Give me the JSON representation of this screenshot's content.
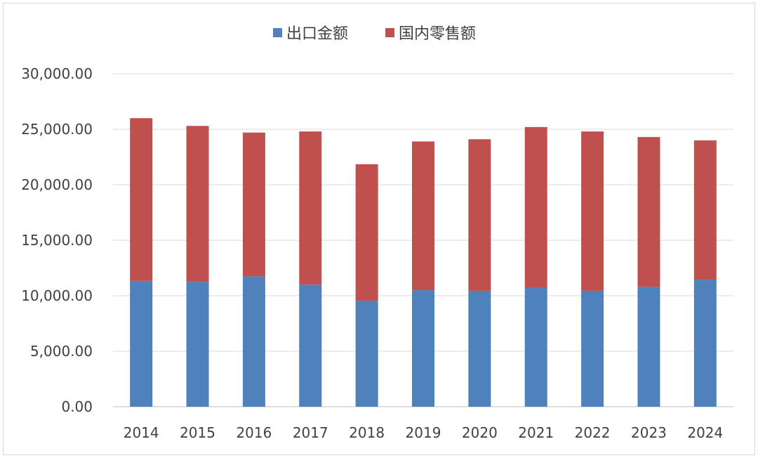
{
  "chart_data": {
    "type": "bar",
    "stacked": true,
    "categories": [
      "2014",
      "2015",
      "2016",
      "2017",
      "2018",
      "2019",
      "2020",
      "2021",
      "2022",
      "2023",
      "2024"
    ],
    "series": [
      {
        "name": "出口金额",
        "color": "#4f81bd",
        "values": [
          11350,
          11250,
          11750,
          11000,
          9550,
          10500,
          10450,
          10700,
          10450,
          10800,
          11450
        ]
      },
      {
        "name": "国内零售额",
        "color": "#c0504d",
        "values": [
          14650,
          14050,
          12950,
          13800,
          12300,
          13400,
          13650,
          14500,
          14350,
          13500,
          12550
        ]
      }
    ],
    "ylim": [
      0,
      30000
    ],
    "yticks": [
      "0.00",
      "5,000.00",
      "10,000.00",
      "15,000.00",
      "20,000.00",
      "25,000.00",
      "30,000.00"
    ],
    "grid": true,
    "legend_position": "top",
    "title": "",
    "xlabel": "",
    "ylabel": ""
  }
}
